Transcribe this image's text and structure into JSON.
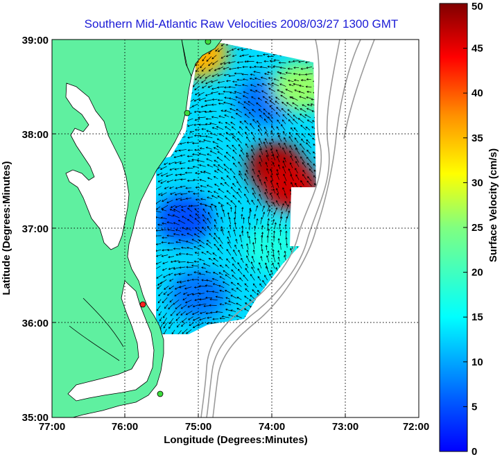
{
  "title": "Southern Mid-Atlantic Raw Velocities 2008/03/27 1300 GMT",
  "x_axis": {
    "label": "Longitude (Degrees:Minutes)",
    "ticks": [
      "77:00",
      "76:00",
      "75:00",
      "74:00",
      "73:00",
      "72:00"
    ]
  },
  "y_axis": {
    "label": "Latitude (Degrees:Minutes)",
    "ticks": [
      "39:00",
      "38:00",
      "37:00",
      "36:00",
      "35:00"
    ]
  },
  "colorbar": {
    "label": "Surface Velocity (cm/s)",
    "ticks": [
      "50",
      "45",
      "40",
      "35",
      "30",
      "25",
      "20",
      "15",
      "10",
      "5",
      "0"
    ],
    "range": [
      0,
      50
    ],
    "colormap": "jet"
  },
  "chart_data": {
    "type": "map",
    "lon_range": [
      -77,
      -72
    ],
    "lat_range": [
      35,
      39
    ],
    "grid": true,
    "land_color": "#5ff0a0",
    "bathymetry_color": "#9a9a9a",
    "arrow_color": "#000000",
    "stations": [
      {
        "lon": -74.85,
        "lat": 38.98,
        "color": "#3ddc3d"
      },
      {
        "lon": -75.15,
        "lat": 38.22,
        "color": "#3ddc3d"
      },
      {
        "lon": -75.75,
        "lat": 36.18,
        "color": "#ff2020"
      },
      {
        "lon": -75.55,
        "lat": 35.25,
        "color": "#3ddc3d"
      }
    ],
    "speed_features": [
      {
        "lon": -73.95,
        "lat": 37.65,
        "speed": 48
      },
      {
        "lon": -73.75,
        "lat": 37.45,
        "speed": 46
      },
      {
        "lon": -75.0,
        "lat": 38.85,
        "speed": 35
      },
      {
        "lon": -74.1,
        "lat": 38.35,
        "speed": 12
      },
      {
        "lon": -75.2,
        "lat": 37.1,
        "speed": 10
      },
      {
        "lon": -75.0,
        "lat": 36.3,
        "speed": 12
      },
      {
        "lon": -73.6,
        "lat": 38.5,
        "speed": 26
      },
      {
        "lon": -74.0,
        "lat": 36.8,
        "speed": 20
      }
    ]
  }
}
